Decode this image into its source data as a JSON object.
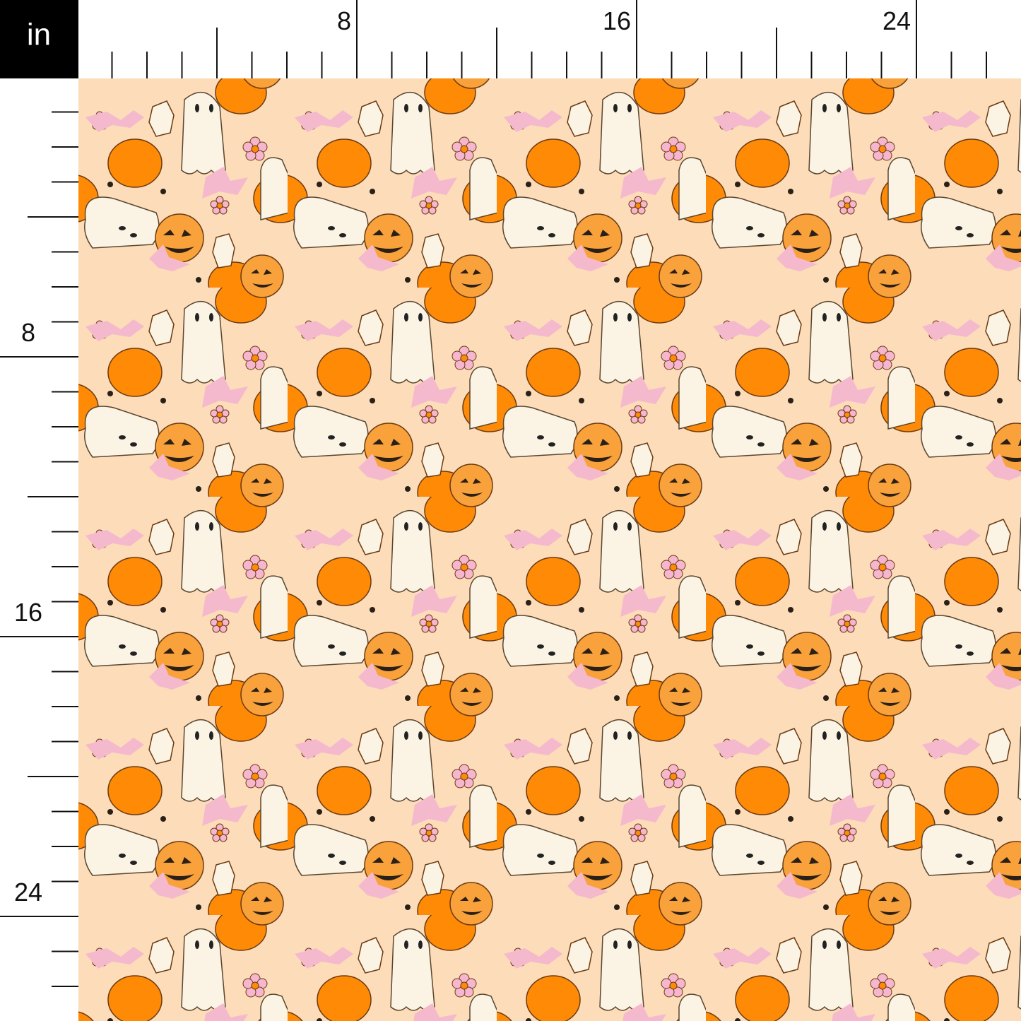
{
  "unit": "in",
  "top_ruler": {
    "marks": [
      8,
      16,
      24
    ]
  },
  "left_ruler": {
    "marks": [
      8,
      16,
      24
    ]
  }
}
